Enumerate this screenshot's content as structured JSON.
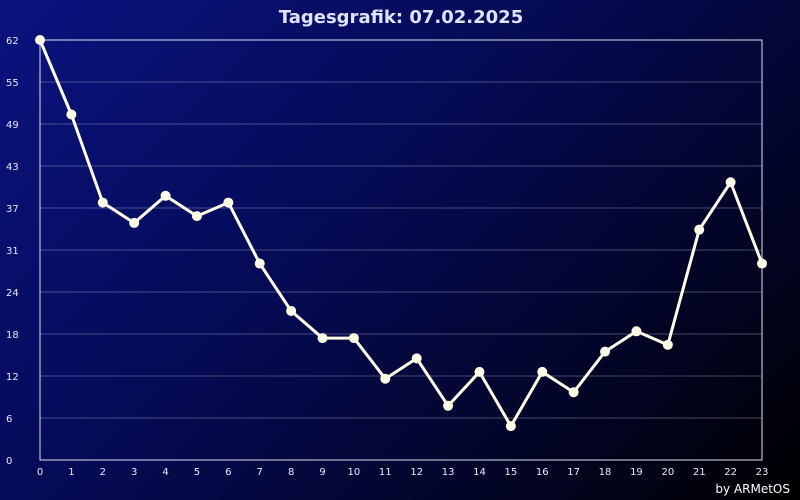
{
  "chart_data": {
    "type": "line",
    "title": "Tagesgrafik: 07.02.2025",
    "xlabel": "",
    "ylabel": "",
    "x": [
      0,
      1,
      2,
      3,
      4,
      5,
      6,
      7,
      8,
      9,
      10,
      11,
      12,
      13,
      14,
      15,
      16,
      17,
      18,
      19,
      20,
      21,
      22,
      23
    ],
    "y_ticks": [
      "0",
      "6",
      "12",
      "18",
      "24",
      "31",
      "37",
      "43",
      "49",
      "55",
      "62"
    ],
    "ylim": [
      0,
      62
    ],
    "grid": true,
    "series": [
      {
        "values": [
          62,
          51,
          38,
          35,
          39,
          36,
          38,
          29,
          22,
          18,
          18,
          12,
          15,
          8,
          13,
          5,
          13,
          10,
          16,
          19,
          17,
          34,
          41,
          29
        ]
      }
    ],
    "colors": {
      "line": "#fffde8",
      "grid": "#b8bcd8",
      "frame": "#e0e0f0"
    }
  },
  "footer": {
    "credit": "by ARMetOS"
  }
}
